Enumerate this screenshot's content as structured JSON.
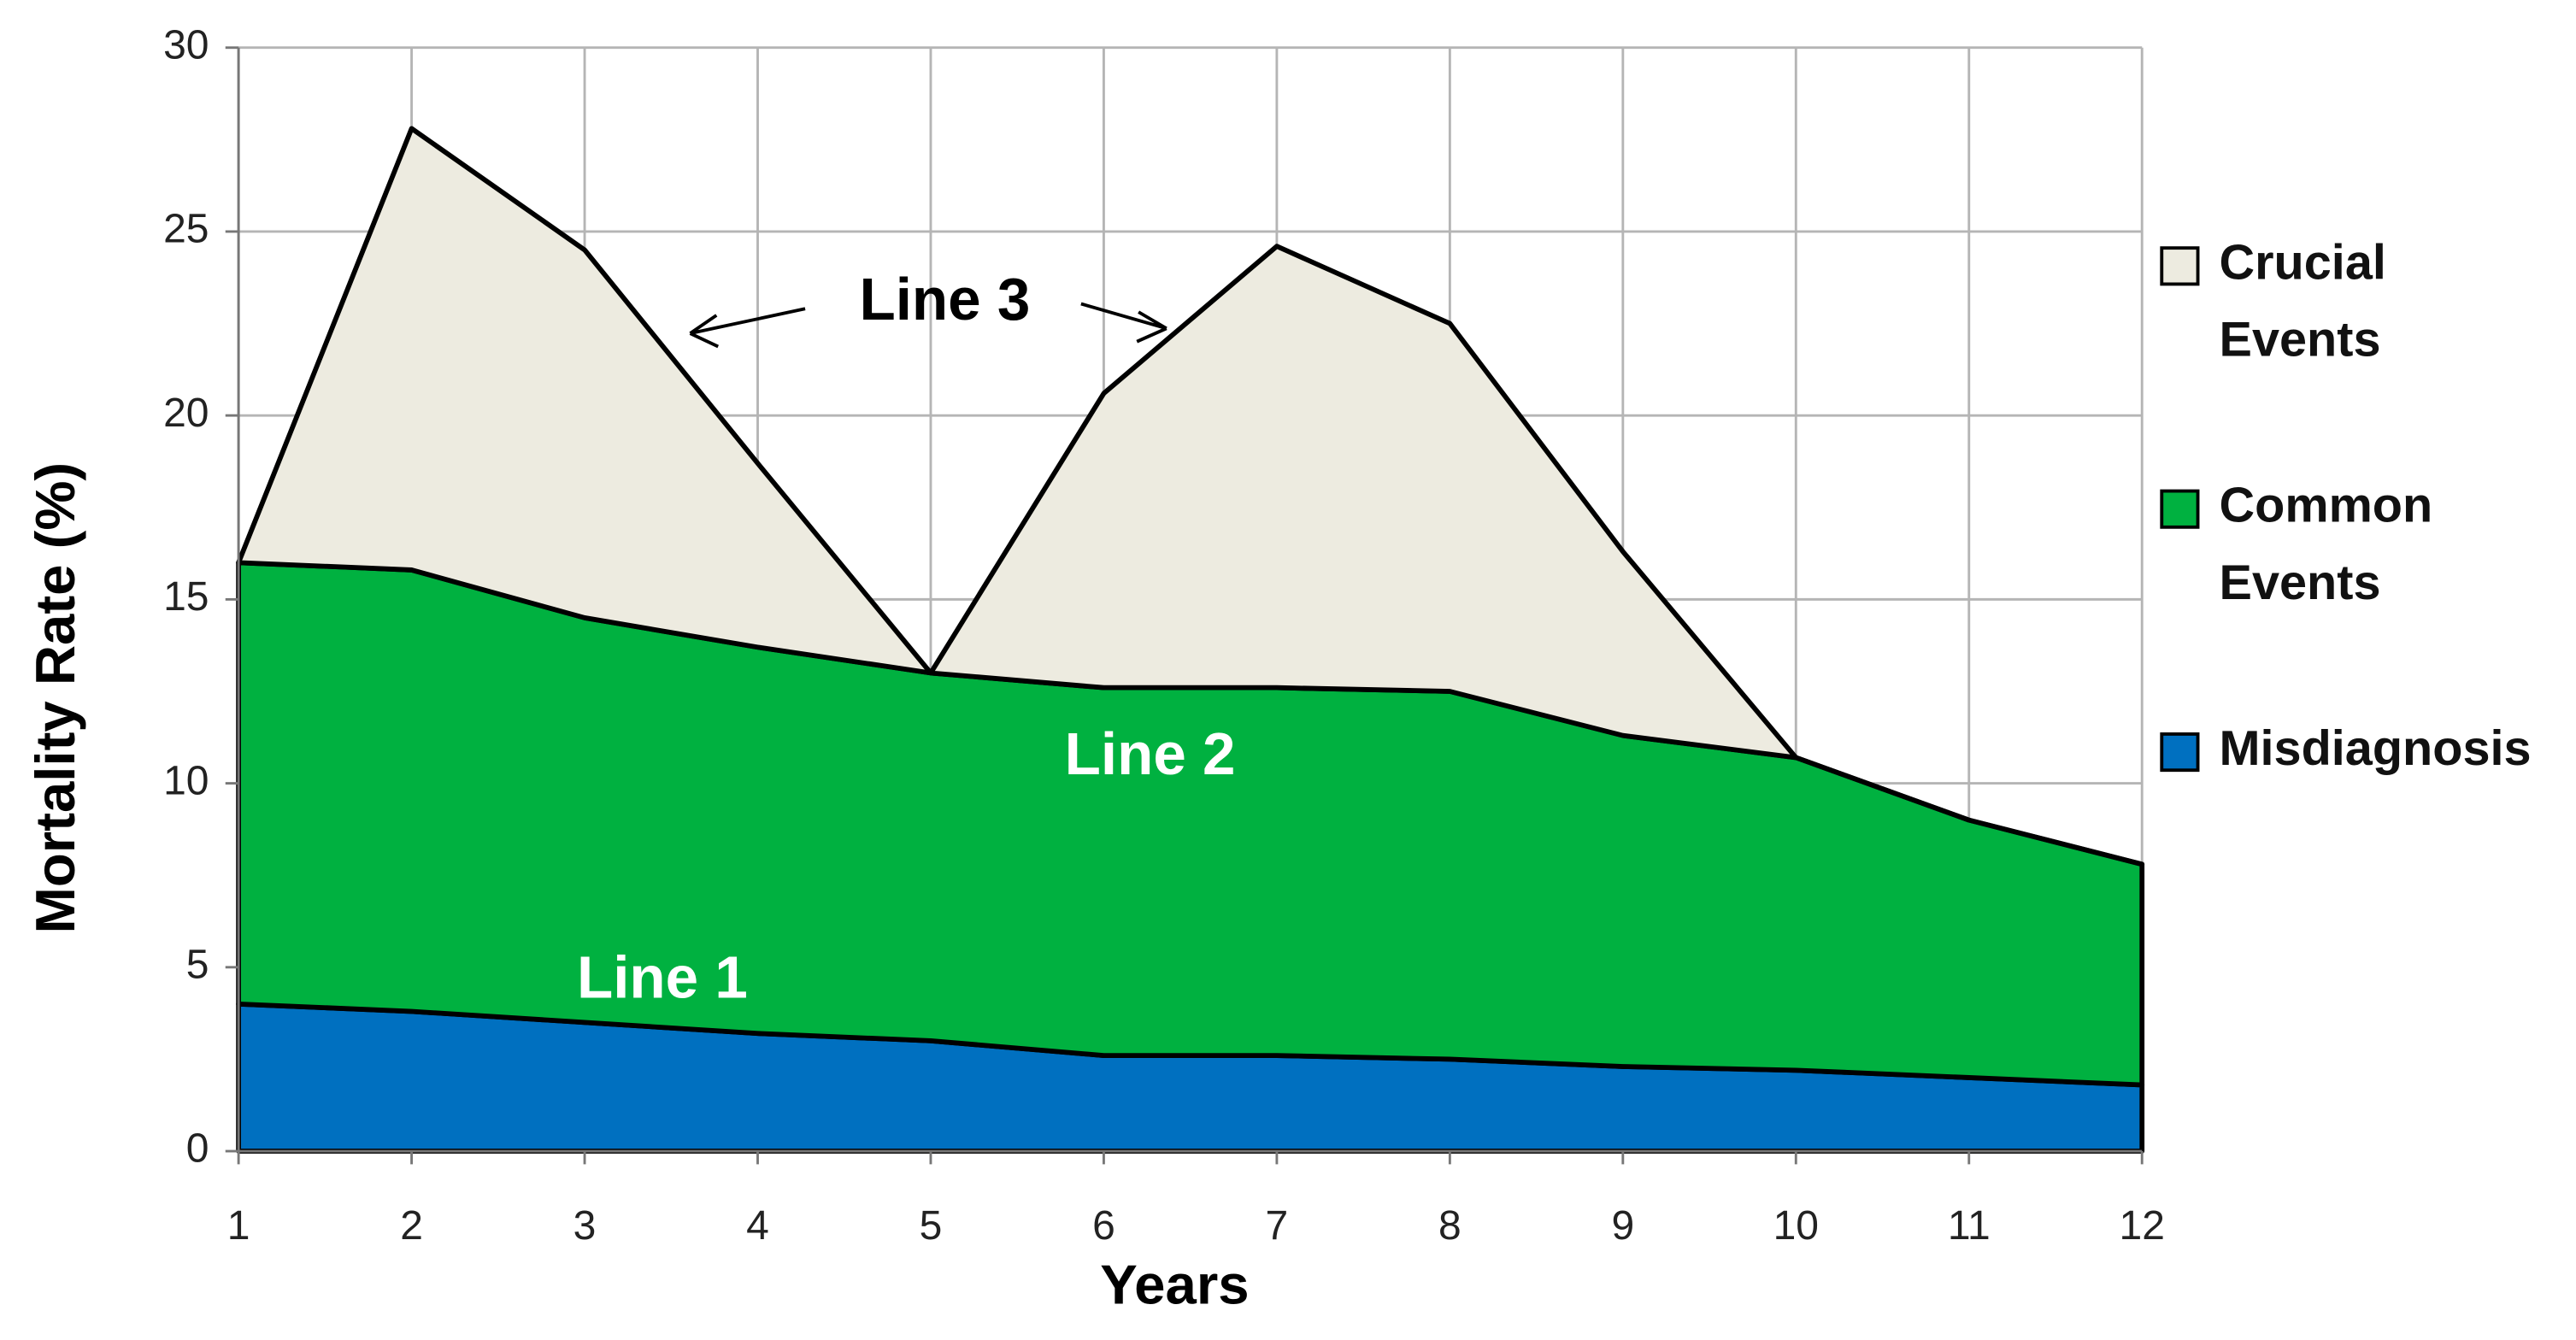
{
  "chart_data": {
    "type": "stacked_area",
    "x": [
      1,
      2,
      3,
      4,
      5,
      6,
      7,
      8,
      9,
      10,
      11,
      12
    ],
    "xlim": [
      1,
      12
    ],
    "xticks": [
      1,
      2,
      3,
      4,
      5,
      6,
      7,
      8,
      9,
      10,
      11,
      12
    ],
    "ylim": [
      0,
      30
    ],
    "yticks": [
      0,
      5,
      10,
      15,
      20,
      25,
      30
    ],
    "xlabel": "Years",
    "ylabel": "Mortality Rate (%)",
    "grid": true,
    "legend": "right",
    "series": [
      {
        "name": "Misdiagnosis",
        "color": "#0070c0",
        "values": [
          4,
          3.8,
          3.5,
          3.2,
          3.0,
          2.6,
          2.6,
          2.5,
          2.3,
          2.2,
          2.0,
          1.8
        ]
      },
      {
        "name": "Common Events",
        "color": "#00b140",
        "values": [
          12,
          12,
          11,
          10.5,
          10,
          10,
          10,
          10,
          9,
          8.5,
          7,
          6
        ]
      },
      {
        "name": "Crucial Events",
        "color": "#edebe0",
        "values": [
          0,
          12,
          10,
          5,
          0,
          8,
          12,
          10,
          5,
          0,
          0,
          0
        ]
      }
    ],
    "annotations": [
      "Line 1",
      "Line 2",
      "Line 3"
    ]
  }
}
